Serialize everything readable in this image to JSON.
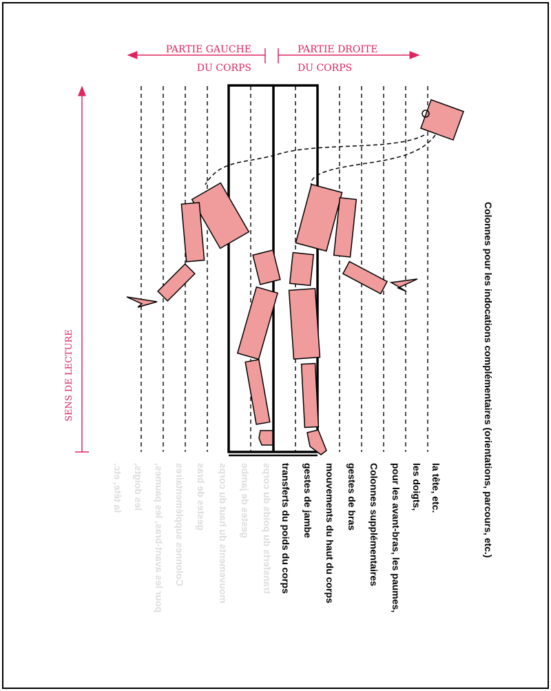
{
  "colors": {
    "accent": "#e0245e",
    "figure_fill": "#f19c9c",
    "ink": "#000000",
    "mirrored_label": "#dddddd"
  },
  "header": {
    "left_line1": "PARTIE GAUCHE",
    "left_line2": "DU CORPS",
    "right_line1": "PARTIE DROITE",
    "right_line2": "DU CORPS"
  },
  "reading_direction_label": "SENS DE LECTURE",
  "column_labels_right": [
    "transferts du poids du corps",
    "gestes de jambe",
    "mouvements du haut du corps",
    "gestes de bras",
    "Colonnes supplémentaires",
    "pour les avant-bras, les paumes,",
    "les doigts,",
    "la tête, etc."
  ],
  "column_labels_left_mirrored": [
    "transferts du poids du corps",
    "gestes de jambe",
    "mouvements du haut du corps",
    "gestes de bras",
    "Colonnes supplémentaires",
    "pour les avant-bras, les paumes,",
    "les doigts,",
    "la tête, etc."
  ],
  "side_note": "Colonnes pour les indocations complémentaires (orientations, parcours, etc.)"
}
